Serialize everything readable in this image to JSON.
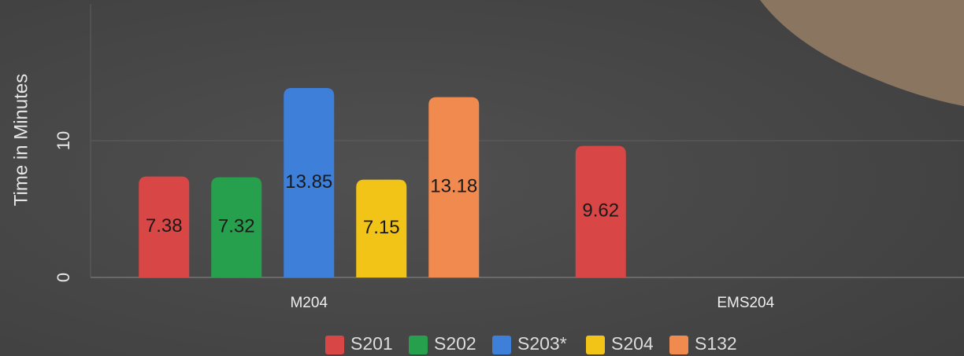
{
  "chart_data": {
    "type": "bar",
    "y_label": "Time in Minutes",
    "categories": [
      "M204",
      "EMS204"
    ],
    "series": [
      {
        "name": "S201",
        "color": "#d94646",
        "values": [
          7.38,
          9.62
        ]
      },
      {
        "name": "S202",
        "color": "#27a04e",
        "values": [
          7.32,
          null
        ]
      },
      {
        "name": "S203*",
        "color": "#3d7fd9",
        "values": [
          13.85,
          null
        ]
      },
      {
        "name": "S204",
        "color": "#f2c418",
        "values": [
          7.15,
          null
        ]
      },
      {
        "name": "S132",
        "color": "#f18a4f",
        "values": [
          13.18,
          null
        ]
      }
    ],
    "ylim": [
      0,
      20
    ],
    "yticks": [
      0,
      10
    ],
    "grid": true,
    "legend": "bottom"
  }
}
